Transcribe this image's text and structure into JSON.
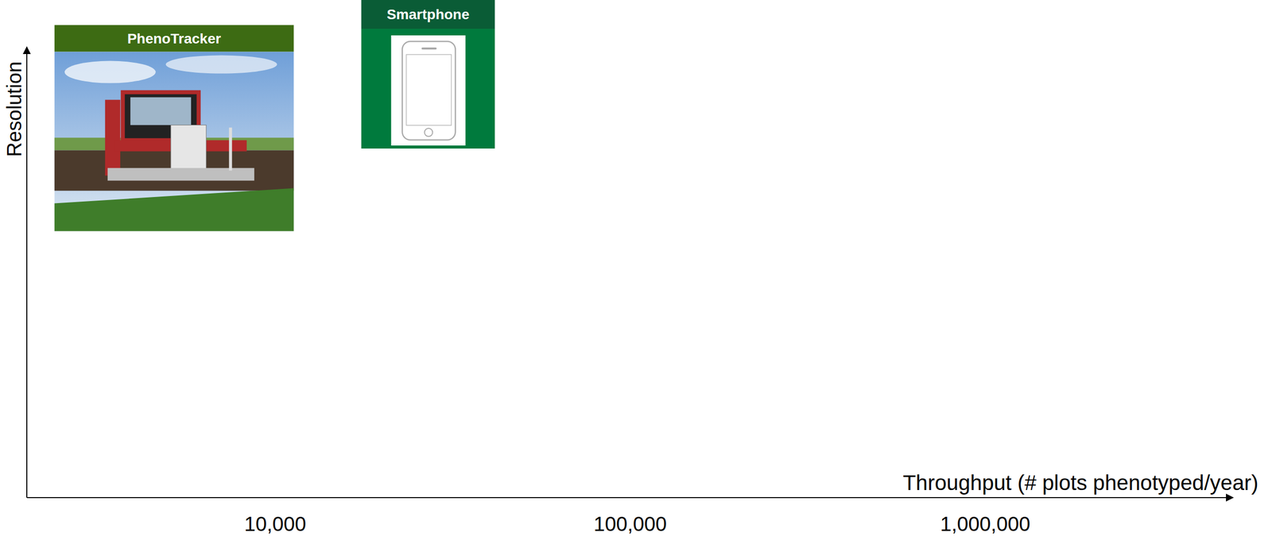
{
  "chart_data": {
    "type": "scatter",
    "x_label": "Throughput (# plots phenotyped/year)",
    "y_label": "Resolution",
    "labels": [
      "PhenoTracker",
      "Smartphone"
    ],
    "x": [
      5200,
      27000
    ],
    "values": [
      82,
      94
    ],
    "colors": [
      "#3d6b13",
      "#0a5c36"
    ],
    "marker": "image-card",
    "xlim": [
      2000,
      5000000
    ],
    "ylim": [
      0,
      100
    ],
    "xticks": [
      {
        "value": 10000,
        "label": "10,000"
      },
      {
        "value": 100000,
        "label": "100,000"
      },
      {
        "value": 1000000,
        "label": "1,000,000"
      }
    ],
    "log": "x",
    "tick_labels": "x"
  }
}
